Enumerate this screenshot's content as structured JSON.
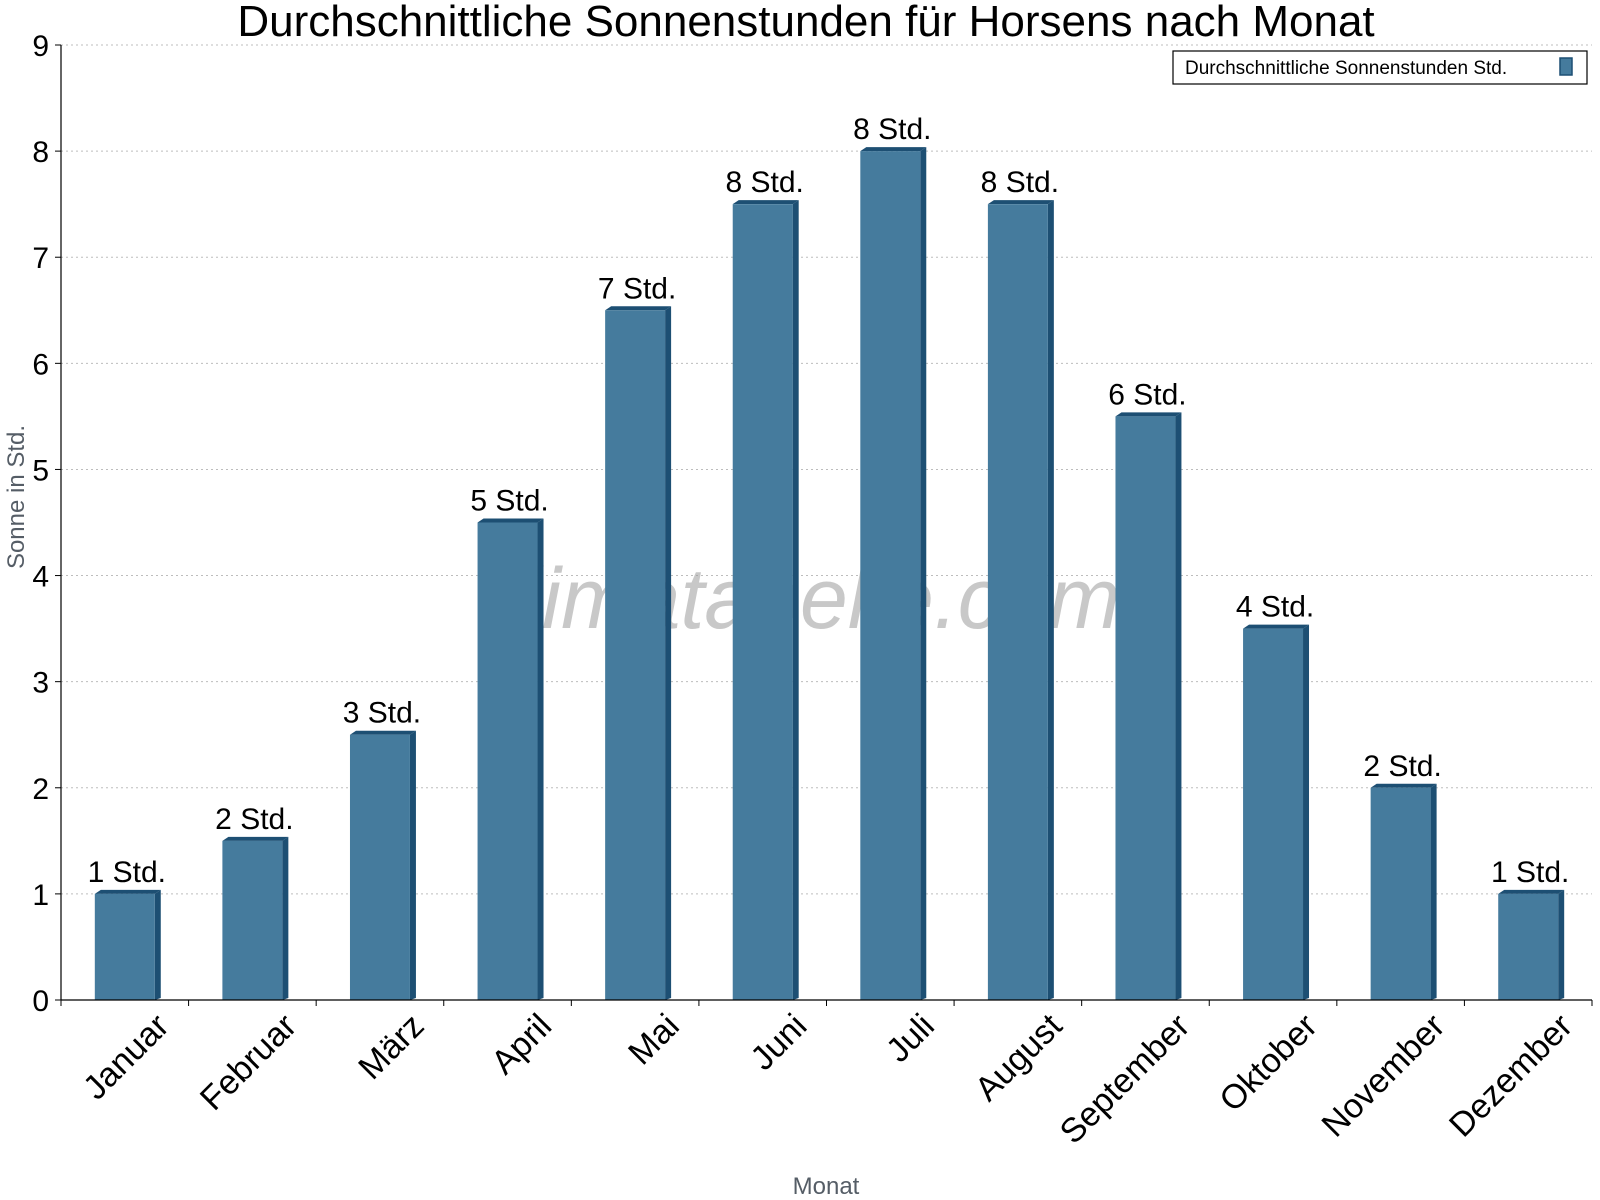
{
  "chart_data": {
    "type": "bar",
    "title": "Durchschnittliche Sonnenstunden für Horsens nach Monat",
    "xlabel": "Monat",
    "ylabel": "Sonne in Std.",
    "ylim": [
      0,
      9
    ],
    "yticks": [
      "0",
      "1",
      "2",
      "3",
      "4",
      "5",
      "6",
      "7",
      "8",
      "9"
    ],
    "grid": true,
    "legend_position": "top-right",
    "categories": [
      "Januar",
      "Februar",
      "März",
      "April",
      "Mai",
      "Juni",
      "Juli",
      "August",
      "September",
      "Oktober",
      "November",
      "Dezember"
    ],
    "series": [
      {
        "name": "Durchschnittliche Sonnenstunden Std.",
        "values": [
          1,
          1.5,
          2.5,
          4.5,
          6.5,
          7.5,
          8,
          7.5,
          5.5,
          3.5,
          2,
          1
        ],
        "labels": [
          "1 Std.",
          "2 Std.",
          "3 Std.",
          "5 Std.",
          "7 Std.",
          "8 Std.",
          "8 Std.",
          "8 Std.",
          "6 Std.",
          "4 Std.",
          "2 Std.",
          "1 Std."
        ],
        "color": "#457b9d",
        "side_color": "#1d4f73"
      }
    ]
  },
  "watermark": "klimatabelle.com"
}
